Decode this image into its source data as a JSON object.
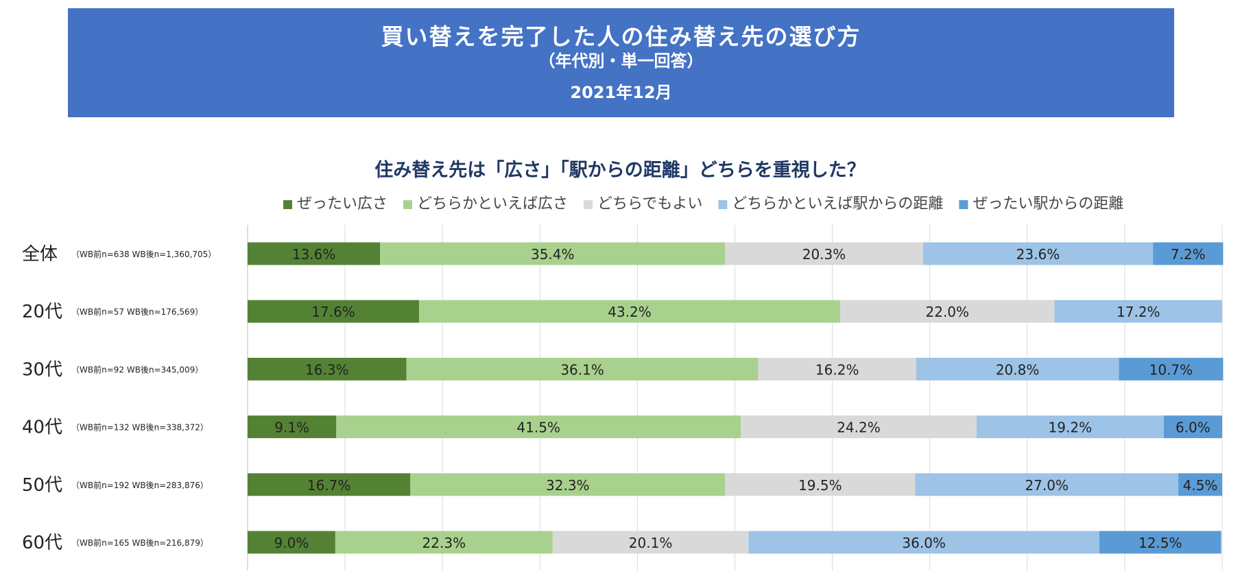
{
  "banner": {
    "title": "買い替えを完了した人の住み替え先の選び方",
    "subtitle": "（年代別・単一回答）",
    "date": "2021年12月"
  },
  "chart_data": {
    "type": "bar",
    "orientation": "horizontal",
    "stacked": "100%",
    "title": "住み替え先は「広さ」「駅からの距離」どちらを重視した？",
    "legend_position": "top",
    "categories": [
      "全体",
      "20代",
      "30代",
      "40代",
      "50代",
      "60代"
    ],
    "category_notes": [
      "（WB前n=638 WB後n=1,360,705）",
      "（WB前n=57 WB後n=176,569）",
      "（WB前n=92 WB後n=345,009）",
      "（WB前n=132 WB後n=338,372）",
      "（WB前n=192 WB後n=283,876）",
      "（WB前n=165 WB後n=216,879）"
    ],
    "series": [
      {
        "name": "ぜったい広さ",
        "color": "#548235",
        "values": [
          13.6,
          17.6,
          16.3,
          9.1,
          16.7,
          9.0
        ]
      },
      {
        "name": "どちらかといえば広さ",
        "color": "#a9d18e",
        "values": [
          35.4,
          43.2,
          36.1,
          41.5,
          32.3,
          22.3
        ]
      },
      {
        "name": "どちらでもよい",
        "color": "#d9d9d9",
        "values": [
          20.3,
          22.0,
          16.2,
          24.2,
          19.5,
          20.1
        ]
      },
      {
        "name": "どちらかといえば駅からの距離",
        "color": "#9dc3e6",
        "values": [
          23.6,
          17.2,
          20.8,
          19.2,
          27.0,
          36.0
        ]
      },
      {
        "name": "ぜったい駅からの距離",
        "color": "#5b9bd5",
        "values": [
          7.2,
          0.0,
          10.7,
          6.0,
          4.5,
          12.5
        ]
      }
    ],
    "value_suffix": "%",
    "xlim": [
      0,
      100
    ],
    "grid": true
  }
}
